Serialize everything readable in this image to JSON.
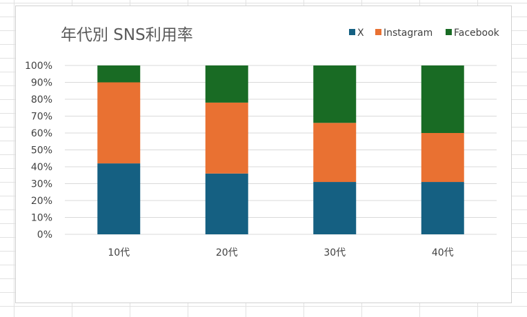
{
  "chart_data": {
    "type": "bar",
    "stacked": true,
    "title": "年代別 SNS利用率",
    "categories": [
      "10代",
      "20代",
      "30代",
      "40代"
    ],
    "series": [
      {
        "name": "X",
        "values": [
          42,
          36,
          31,
          31
        ],
        "color": "#156082"
      },
      {
        "name": "Instagram",
        "values": [
          48,
          42,
          35,
          29
        ],
        "color": "#e97132"
      },
      {
        "name": "Facebook",
        "values": [
          10,
          22,
          34,
          40
        ],
        "color": "#196b24"
      }
    ],
    "y_ticks": [
      "0%",
      "10%",
      "20%",
      "30%",
      "40%",
      "50%",
      "60%",
      "70%",
      "80%",
      "90%",
      "100%"
    ],
    "ylim": [
      0,
      100
    ],
    "grid": true,
    "legend_position": "top-right"
  }
}
